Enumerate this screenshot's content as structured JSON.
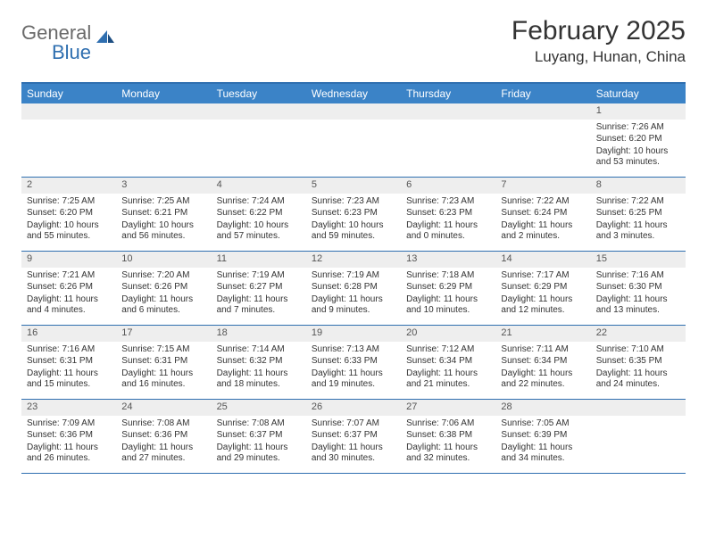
{
  "brand": {
    "general": "General",
    "blue": "Blue"
  },
  "title": {
    "month": "February 2025",
    "location": "Luyang, Hunan, China"
  },
  "style": {
    "accent": "#2f6fb0",
    "header_bg": "#3b83c7",
    "strip_bg": "#eeeeee",
    "text": "#333333",
    "logo_gray": "#6a6a6a"
  },
  "day_headers": [
    "Sunday",
    "Monday",
    "Tuesday",
    "Wednesday",
    "Thursday",
    "Friday",
    "Saturday"
  ],
  "weeks": [
    [
      {
        "n": "",
        "sunrise": "",
        "sunset": "",
        "daylight": ""
      },
      {
        "n": "",
        "sunrise": "",
        "sunset": "",
        "daylight": ""
      },
      {
        "n": "",
        "sunrise": "",
        "sunset": "",
        "daylight": ""
      },
      {
        "n": "",
        "sunrise": "",
        "sunset": "",
        "daylight": ""
      },
      {
        "n": "",
        "sunrise": "",
        "sunset": "",
        "daylight": ""
      },
      {
        "n": "",
        "sunrise": "",
        "sunset": "",
        "daylight": ""
      },
      {
        "n": "1",
        "sunrise": "Sunrise: 7:26 AM",
        "sunset": "Sunset: 6:20 PM",
        "daylight": "Daylight: 10 hours and 53 minutes."
      }
    ],
    [
      {
        "n": "2",
        "sunrise": "Sunrise: 7:25 AM",
        "sunset": "Sunset: 6:20 PM",
        "daylight": "Daylight: 10 hours and 55 minutes."
      },
      {
        "n": "3",
        "sunrise": "Sunrise: 7:25 AM",
        "sunset": "Sunset: 6:21 PM",
        "daylight": "Daylight: 10 hours and 56 minutes."
      },
      {
        "n": "4",
        "sunrise": "Sunrise: 7:24 AM",
        "sunset": "Sunset: 6:22 PM",
        "daylight": "Daylight: 10 hours and 57 minutes."
      },
      {
        "n": "5",
        "sunrise": "Sunrise: 7:23 AM",
        "sunset": "Sunset: 6:23 PM",
        "daylight": "Daylight: 10 hours and 59 minutes."
      },
      {
        "n": "6",
        "sunrise": "Sunrise: 7:23 AM",
        "sunset": "Sunset: 6:23 PM",
        "daylight": "Daylight: 11 hours and 0 minutes."
      },
      {
        "n": "7",
        "sunrise": "Sunrise: 7:22 AM",
        "sunset": "Sunset: 6:24 PM",
        "daylight": "Daylight: 11 hours and 2 minutes."
      },
      {
        "n": "8",
        "sunrise": "Sunrise: 7:22 AM",
        "sunset": "Sunset: 6:25 PM",
        "daylight": "Daylight: 11 hours and 3 minutes."
      }
    ],
    [
      {
        "n": "9",
        "sunrise": "Sunrise: 7:21 AM",
        "sunset": "Sunset: 6:26 PM",
        "daylight": "Daylight: 11 hours and 4 minutes."
      },
      {
        "n": "10",
        "sunrise": "Sunrise: 7:20 AM",
        "sunset": "Sunset: 6:26 PM",
        "daylight": "Daylight: 11 hours and 6 minutes."
      },
      {
        "n": "11",
        "sunrise": "Sunrise: 7:19 AM",
        "sunset": "Sunset: 6:27 PM",
        "daylight": "Daylight: 11 hours and 7 minutes."
      },
      {
        "n": "12",
        "sunrise": "Sunrise: 7:19 AM",
        "sunset": "Sunset: 6:28 PM",
        "daylight": "Daylight: 11 hours and 9 minutes."
      },
      {
        "n": "13",
        "sunrise": "Sunrise: 7:18 AM",
        "sunset": "Sunset: 6:29 PM",
        "daylight": "Daylight: 11 hours and 10 minutes."
      },
      {
        "n": "14",
        "sunrise": "Sunrise: 7:17 AM",
        "sunset": "Sunset: 6:29 PM",
        "daylight": "Daylight: 11 hours and 12 minutes."
      },
      {
        "n": "15",
        "sunrise": "Sunrise: 7:16 AM",
        "sunset": "Sunset: 6:30 PM",
        "daylight": "Daylight: 11 hours and 13 minutes."
      }
    ],
    [
      {
        "n": "16",
        "sunrise": "Sunrise: 7:16 AM",
        "sunset": "Sunset: 6:31 PM",
        "daylight": "Daylight: 11 hours and 15 minutes."
      },
      {
        "n": "17",
        "sunrise": "Sunrise: 7:15 AM",
        "sunset": "Sunset: 6:31 PM",
        "daylight": "Daylight: 11 hours and 16 minutes."
      },
      {
        "n": "18",
        "sunrise": "Sunrise: 7:14 AM",
        "sunset": "Sunset: 6:32 PM",
        "daylight": "Daylight: 11 hours and 18 minutes."
      },
      {
        "n": "19",
        "sunrise": "Sunrise: 7:13 AM",
        "sunset": "Sunset: 6:33 PM",
        "daylight": "Daylight: 11 hours and 19 minutes."
      },
      {
        "n": "20",
        "sunrise": "Sunrise: 7:12 AM",
        "sunset": "Sunset: 6:34 PM",
        "daylight": "Daylight: 11 hours and 21 minutes."
      },
      {
        "n": "21",
        "sunrise": "Sunrise: 7:11 AM",
        "sunset": "Sunset: 6:34 PM",
        "daylight": "Daylight: 11 hours and 22 minutes."
      },
      {
        "n": "22",
        "sunrise": "Sunrise: 7:10 AM",
        "sunset": "Sunset: 6:35 PM",
        "daylight": "Daylight: 11 hours and 24 minutes."
      }
    ],
    [
      {
        "n": "23",
        "sunrise": "Sunrise: 7:09 AM",
        "sunset": "Sunset: 6:36 PM",
        "daylight": "Daylight: 11 hours and 26 minutes."
      },
      {
        "n": "24",
        "sunrise": "Sunrise: 7:08 AM",
        "sunset": "Sunset: 6:36 PM",
        "daylight": "Daylight: 11 hours and 27 minutes."
      },
      {
        "n": "25",
        "sunrise": "Sunrise: 7:08 AM",
        "sunset": "Sunset: 6:37 PM",
        "daylight": "Daylight: 11 hours and 29 minutes."
      },
      {
        "n": "26",
        "sunrise": "Sunrise: 7:07 AM",
        "sunset": "Sunset: 6:37 PM",
        "daylight": "Daylight: 11 hours and 30 minutes."
      },
      {
        "n": "27",
        "sunrise": "Sunrise: 7:06 AM",
        "sunset": "Sunset: 6:38 PM",
        "daylight": "Daylight: 11 hours and 32 minutes."
      },
      {
        "n": "28",
        "sunrise": "Sunrise: 7:05 AM",
        "sunset": "Sunset: 6:39 PM",
        "daylight": "Daylight: 11 hours and 34 minutes."
      },
      {
        "n": "",
        "sunrise": "",
        "sunset": "",
        "daylight": ""
      }
    ]
  ]
}
